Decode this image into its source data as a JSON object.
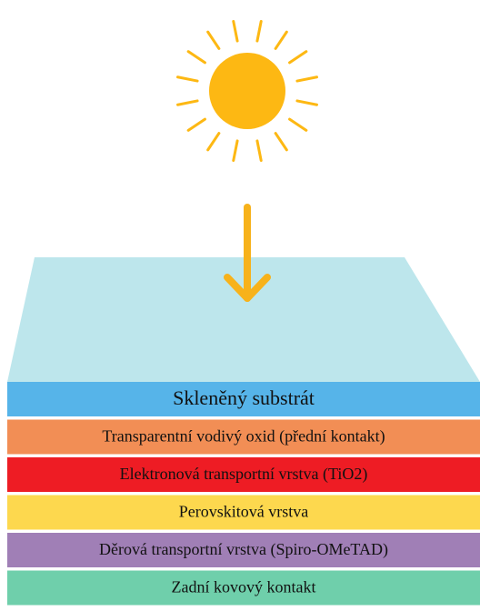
{
  "layers": [
    {
      "label": "Skleněný substrát"
    },
    {
      "label": "Transparentní vodivý oxid (přední kontakt)"
    },
    {
      "label": "Elektronová transportní vrstva (TiO2)"
    },
    {
      "label": "Perovskitová vrstva"
    },
    {
      "label": "Děrová transportní vrstva (Spiro-OMeTAD)"
    },
    {
      "label": "Zadní kovový kontakt"
    }
  ]
}
